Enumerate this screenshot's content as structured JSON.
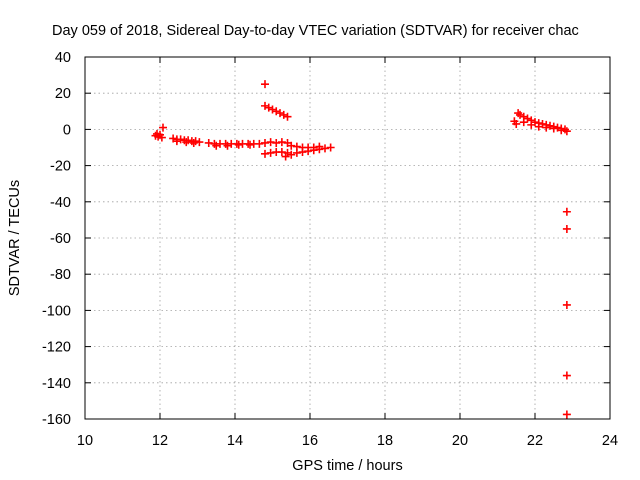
{
  "chart_data": {
    "type": "scatter",
    "title": "Day 059 of 2018, Sidereal Day-to-day VTEC variation (SDTVAR) for receiver chac",
    "xlabel": "GPS time / hours",
    "ylabel": "SDTVAR / TECUs",
    "xlim": [
      10,
      24
    ],
    "ylim": [
      -160,
      40
    ],
    "xticks": [
      10,
      12,
      14,
      16,
      18,
      20,
      22,
      24
    ],
    "yticks": [
      40,
      20,
      0,
      -20,
      -40,
      -60,
      -80,
      -100,
      -120,
      -140,
      -160
    ],
    "grid": true,
    "marker": "plus",
    "color": "#ff0000",
    "series": [
      {
        "points": [
          [
            11.88,
            -3.5
          ],
          [
            11.92,
            -2.5
          ],
          [
            11.95,
            -4.0
          ],
          [
            12.0,
            -3.0
          ],
          [
            12.05,
            -4.5
          ],
          [
            12.08,
            1.0
          ],
          [
            12.35,
            -5.0
          ],
          [
            12.45,
            -5.5
          ],
          [
            12.55,
            -5.5
          ],
          [
            12.65,
            -6.0
          ],
          [
            12.75,
            -6.0
          ],
          [
            12.85,
            -6.5
          ],
          [
            12.95,
            -6.5
          ],
          [
            13.05,
            -7.0
          ],
          [
            12.45,
            -6.5
          ],
          [
            12.7,
            -7.0
          ],
          [
            12.9,
            -7.5
          ],
          [
            13.3,
            -7.5
          ],
          [
            13.45,
            -8.0
          ],
          [
            13.6,
            -8.0
          ],
          [
            13.75,
            -8.0
          ],
          [
            13.9,
            -8.0
          ],
          [
            14.05,
            -8.0
          ],
          [
            14.2,
            -8.0
          ],
          [
            14.35,
            -8.0
          ],
          [
            14.5,
            -8.0
          ],
          [
            14.65,
            -8.0
          ],
          [
            13.5,
            -9.0
          ],
          [
            13.8,
            -9.0
          ],
          [
            14.1,
            -8.5
          ],
          [
            14.4,
            -8.5
          ],
          [
            14.8,
            25.0
          ],
          [
            14.8,
            13.0
          ],
          [
            14.9,
            12.0
          ],
          [
            15.0,
            11.0
          ],
          [
            15.1,
            10.0
          ],
          [
            15.2,
            9.0
          ],
          [
            15.3,
            8.0
          ],
          [
            15.4,
            7.0
          ],
          [
            14.8,
            -7.5
          ],
          [
            14.95,
            -7.0
          ],
          [
            15.1,
            -7.5
          ],
          [
            15.25,
            -7.0
          ],
          [
            15.4,
            -7.5
          ],
          [
            14.8,
            -13.5
          ],
          [
            14.95,
            -13.0
          ],
          [
            15.1,
            -12.5
          ],
          [
            15.25,
            -12.5
          ],
          [
            15.4,
            -13.0
          ],
          [
            15.35,
            -15.0
          ],
          [
            15.5,
            -14.0
          ],
          [
            15.65,
            -13.0
          ],
          [
            15.8,
            -12.5
          ],
          [
            15.95,
            -12.0
          ],
          [
            15.5,
            -9.0
          ],
          [
            15.65,
            -9.5
          ],
          [
            15.8,
            -10.0
          ],
          [
            15.95,
            -10.0
          ],
          [
            16.1,
            -10.0
          ],
          [
            16.1,
            -11.5
          ],
          [
            16.25,
            -11.0
          ],
          [
            16.4,
            -10.5
          ],
          [
            16.55,
            -10.0
          ],
          [
            16.25,
            -9.5
          ],
          [
            21.45,
            4.5
          ],
          [
            21.5,
            3.0
          ],
          [
            21.55,
            9.0
          ],
          [
            21.6,
            8.0
          ],
          [
            21.7,
            7.0
          ],
          [
            21.8,
            6.0
          ],
          [
            21.9,
            5.0
          ],
          [
            22.0,
            4.0
          ],
          [
            22.1,
            3.5
          ],
          [
            22.2,
            3.0
          ],
          [
            22.3,
            2.5
          ],
          [
            22.4,
            2.0
          ],
          [
            22.5,
            1.5
          ],
          [
            22.6,
            1.0
          ],
          [
            22.7,
            0.5
          ],
          [
            22.8,
            0.0
          ],
          [
            22.85,
            -1.0
          ],
          [
            21.7,
            4.0
          ],
          [
            21.9,
            2.5
          ],
          [
            22.1,
            1.5
          ],
          [
            22.3,
            1.0
          ],
          [
            22.5,
            0.5
          ],
          [
            22.7,
            -0.5
          ],
          [
            22.85,
            -45.5
          ],
          [
            22.85,
            -55.0
          ],
          [
            22.85,
            -97.0
          ],
          [
            22.85,
            -136.0
          ],
          [
            22.85,
            -157.5
          ]
        ]
      }
    ]
  }
}
